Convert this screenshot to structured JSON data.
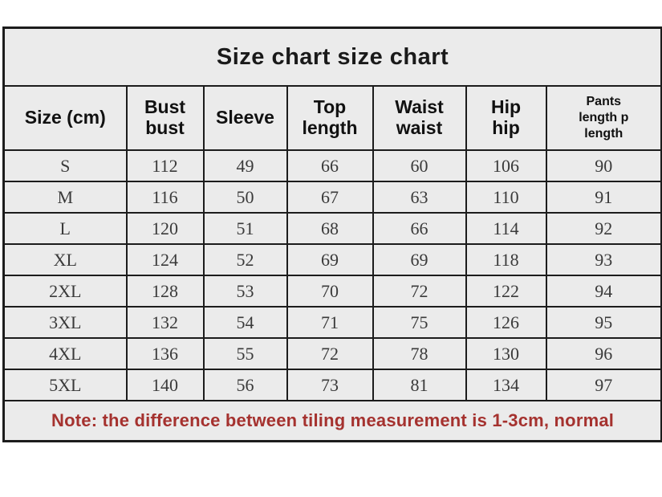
{
  "title": "Size chart size chart",
  "note": "Note: the difference between tiling measurement is 1-3cm, normal",
  "colors": {
    "cell_background": "#ebebeb",
    "border": "#1c1c1c",
    "note_text": "#a5322f",
    "header_text": "#111111",
    "data_text": "#3a3a3a",
    "page_background": "#ffffff"
  },
  "table": {
    "columns": [
      {
        "key": "size",
        "label": "Size (cm)",
        "small": false
      },
      {
        "key": "bust",
        "label": "Bust\nbust",
        "small": false
      },
      {
        "key": "sleeve",
        "label": "Sleeve",
        "small": false
      },
      {
        "key": "top-length",
        "label": "Top\nlength",
        "small": false
      },
      {
        "key": "waist",
        "label": "Waist\nwaist",
        "small": false
      },
      {
        "key": "hip",
        "label": "Hip\nhip",
        "small": false
      },
      {
        "key": "pants-length",
        "label": "Pants\nlength p\nlength",
        "small": true
      }
    ],
    "rows": [
      {
        "cells": [
          "S",
          "112",
          "49",
          "66",
          "60",
          "106",
          "90"
        ]
      },
      {
        "cells": [
          "M",
          "116",
          "50",
          "67",
          "63",
          "110",
          "91"
        ]
      },
      {
        "cells": [
          "L",
          "120",
          "51",
          "68",
          "66",
          "114",
          "92"
        ]
      },
      {
        "cells": [
          "XL",
          "124",
          "52",
          "69",
          "69",
          "118",
          "93"
        ]
      },
      {
        "cells": [
          "2XL",
          "128",
          "53",
          "70",
          "72",
          "122",
          "94"
        ]
      },
      {
        "cells": [
          "3XL",
          "132",
          "54",
          "71",
          "75",
          "126",
          "95"
        ]
      },
      {
        "cells": [
          "4XL",
          "136",
          "55",
          "72",
          "78",
          "130",
          "96"
        ]
      },
      {
        "cells": [
          "5XL",
          "140",
          "56",
          "73",
          "81",
          "134",
          "97"
        ]
      }
    ]
  }
}
